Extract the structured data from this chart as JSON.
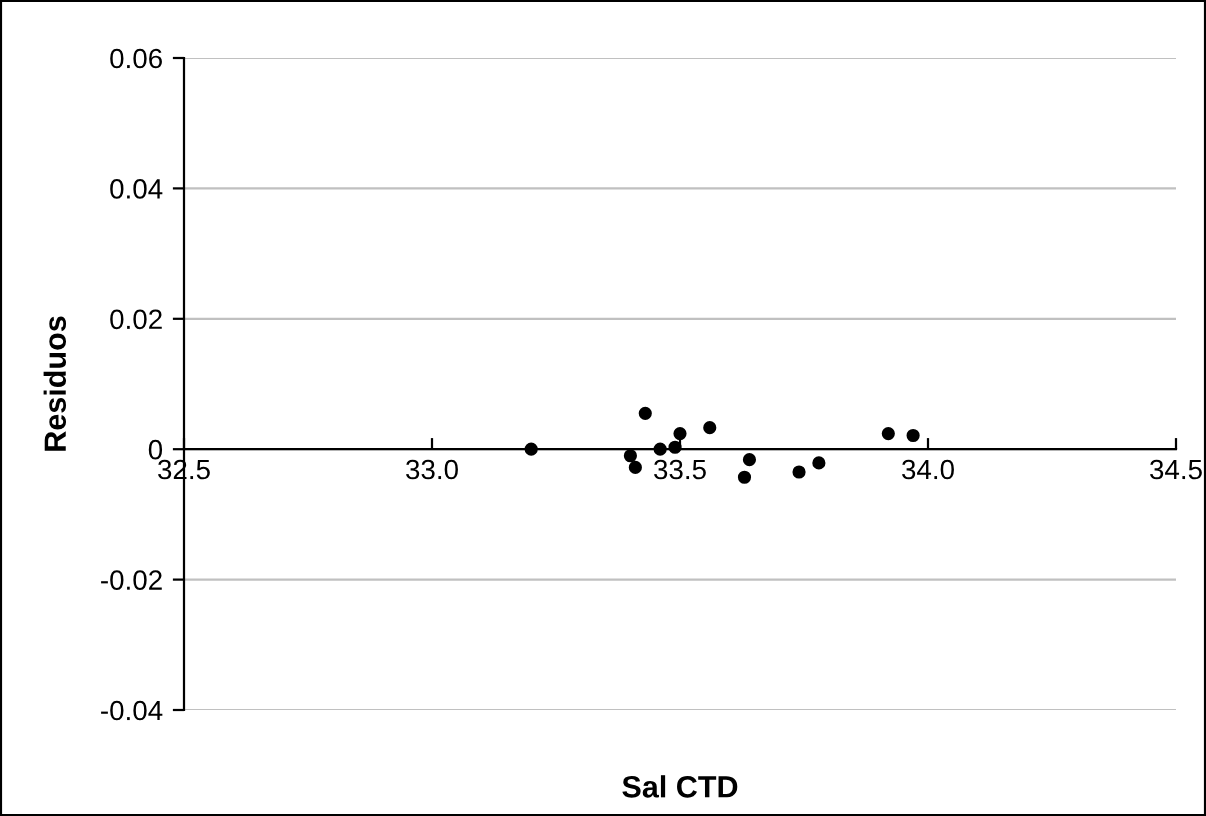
{
  "chart_data": {
    "type": "scatter",
    "xlabel": "Sal CTD",
    "ylabel": "Residuos",
    "x": [
      33.2,
      33.43,
      33.4,
      33.41,
      33.46,
      33.49,
      33.5,
      33.56,
      33.63,
      33.64,
      33.74,
      33.78,
      33.92,
      33.97
    ],
    "series": [
      {
        "color": "#000000",
        "values": [
          0,
          0.0055,
          -0.001,
          -0.0028,
          0,
          0.0003,
          0.0024,
          0.0033,
          -0.0043,
          -0.0016,
          -0.0035,
          -0.0021,
          0.0024,
          0.0021
        ]
      }
    ],
    "xlim": [
      32.5,
      34.5
    ],
    "xticks": [
      {
        "value": 32.5,
        "label": "32.5"
      },
      {
        "value": 33.0,
        "label": "33.0"
      },
      {
        "value": 33.5,
        "label": "33.5"
      },
      {
        "value": 34.0,
        "label": "34.0"
      },
      {
        "value": 34.5,
        "label": "34.5"
      }
    ],
    "ylim": [
      -0.04,
      0.06
    ],
    "yticks": [
      {
        "value": -0.04,
        "label": "-0.04"
      },
      {
        "value": -0.02,
        "label": "-0.02"
      },
      {
        "value": 0,
        "label": "0"
      },
      {
        "value": 0.02,
        "label": "0.02"
      },
      {
        "value": 0.04,
        "label": "0.04"
      },
      {
        "value": 0.06,
        "label": "0.06"
      }
    ],
    "grid": "y",
    "marker": "circle"
  }
}
